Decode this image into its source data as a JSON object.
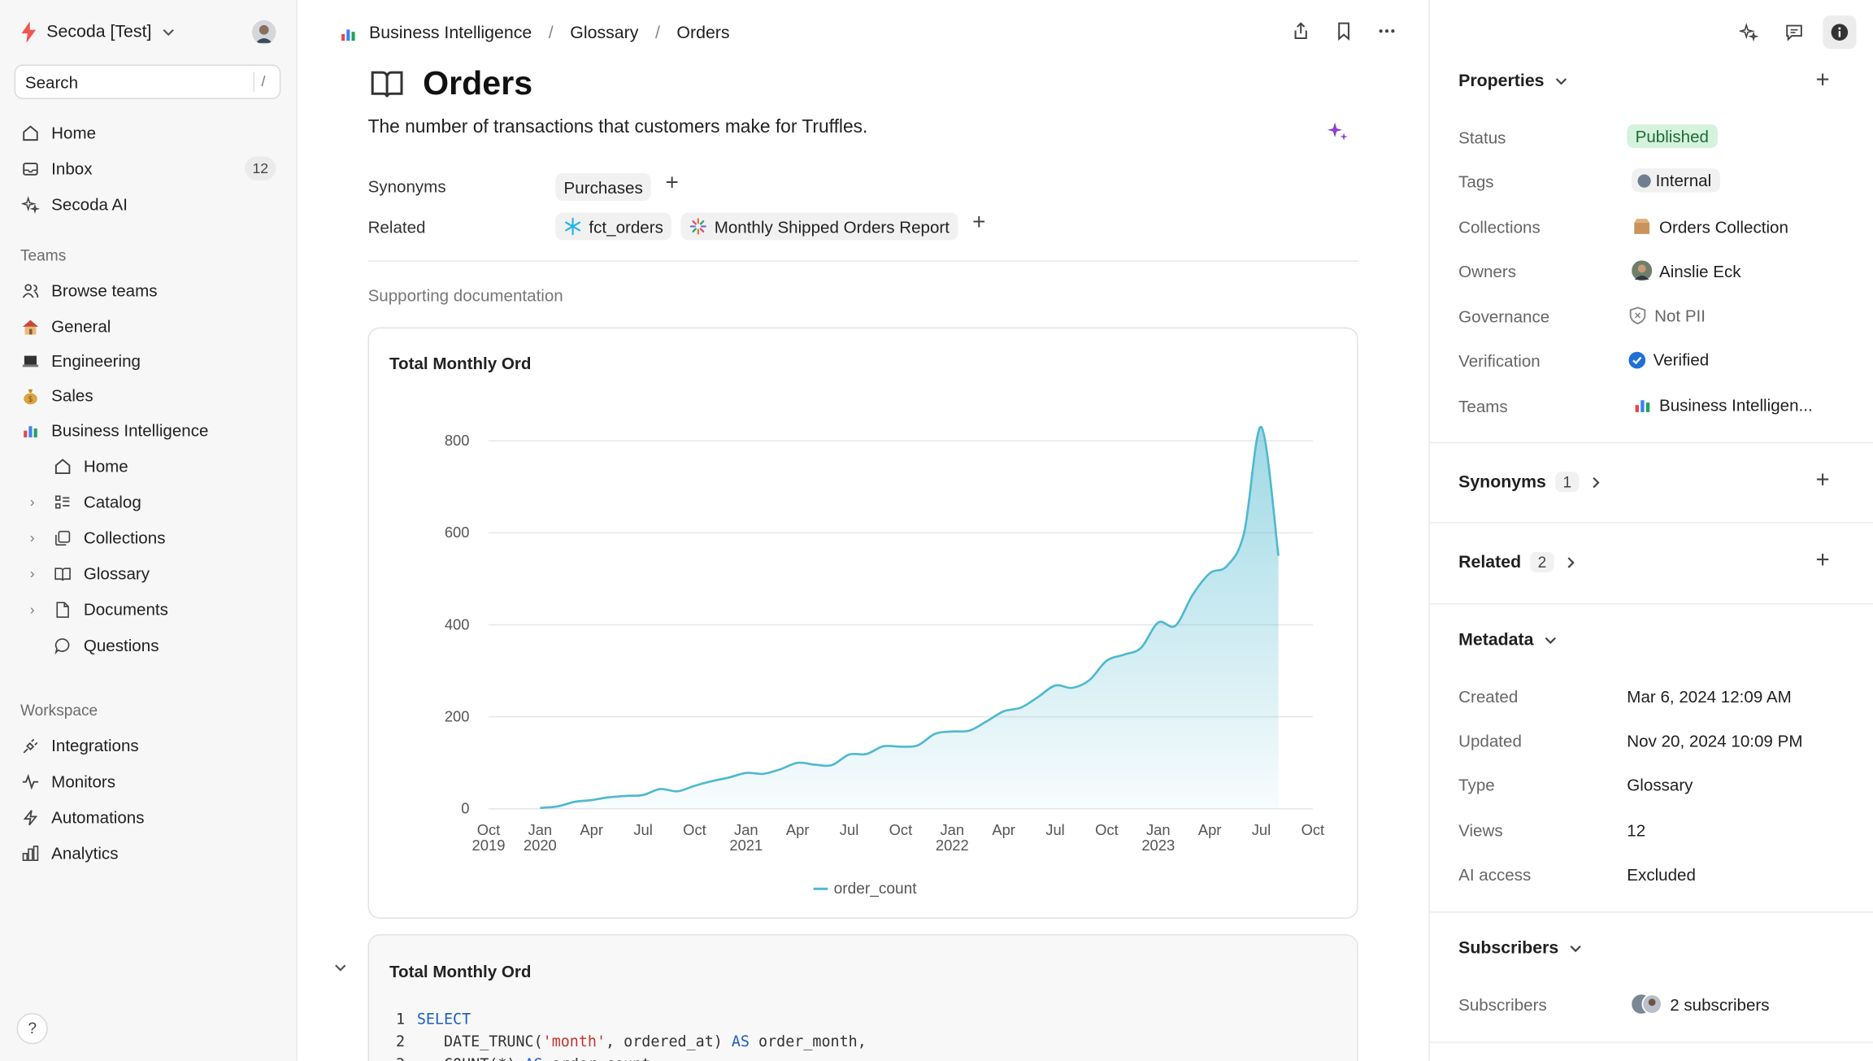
{
  "sidebar": {
    "workspace_name": "Secoda [Test]",
    "search_label": "Search",
    "search_shortcut": "/",
    "main_nav": [
      {
        "label": "Home",
        "icon": "home-icon"
      },
      {
        "label": "Inbox",
        "icon": "inbox-icon",
        "badge": "12"
      },
      {
        "label": "Secoda AI",
        "icon": "sparkle-icon"
      }
    ],
    "teams_label": "Teams",
    "teams": [
      {
        "label": "Browse teams",
        "icon": "users-icon"
      },
      {
        "label": "General",
        "icon": "house-emoji-icon",
        "emoji": "🏠"
      },
      {
        "label": "Engineering",
        "icon": "laptop-emoji-icon",
        "emoji": "💻"
      },
      {
        "label": "Sales",
        "icon": "moneybag-emoji-icon",
        "emoji": "💰"
      },
      {
        "label": "Business Intelligence",
        "icon": "bar-chart-emoji-icon",
        "emoji": "📊"
      }
    ],
    "bi_children": [
      {
        "label": "Home",
        "icon": "home-icon",
        "chevron": false
      },
      {
        "label": "Catalog",
        "icon": "catalog-icon",
        "chevron": true
      },
      {
        "label": "Collections",
        "icon": "collections-icon",
        "chevron": true
      },
      {
        "label": "Glossary",
        "icon": "book-icon",
        "chevron": true
      },
      {
        "label": "Documents",
        "icon": "document-icon",
        "chevron": true
      },
      {
        "label": "Questions",
        "icon": "question-bubble-icon",
        "chevron": false
      }
    ],
    "workspace_label": "Workspace",
    "workspace_items": [
      {
        "label": "Integrations",
        "icon": "plug-icon"
      },
      {
        "label": "Monitors",
        "icon": "pulse-icon"
      },
      {
        "label": "Automations",
        "icon": "bolt-icon"
      },
      {
        "label": "Analytics",
        "icon": "analytics-icon"
      }
    ],
    "help_label": "?"
  },
  "breadcrumb": {
    "items": [
      "Business Intelligence",
      "Glossary",
      "Orders"
    ],
    "separator": "/"
  },
  "main": {
    "title": "Orders",
    "description": "The number of transactions that customers make for Truffles.",
    "synonyms_label": "Synonyms",
    "synonyms": [
      "Purchases"
    ],
    "related_label": "Related",
    "related": [
      "fct_orders",
      "Monthly Shipped Orders Report"
    ],
    "supporting_label": "Supporting documentation",
    "chart_card_title": "Total Monthly Ord",
    "query_card_title": "Total Monthly Ord",
    "code_lines": [
      {
        "n": "1",
        "parts": [
          {
            "t": "SELECT",
            "c": "kw"
          }
        ]
      },
      {
        "n": "2",
        "parts": [
          {
            "t": "   DATE_TRUNC(",
            "c": "plain"
          },
          {
            "t": "'month'",
            "c": "str"
          },
          {
            "t": ", ordered_at) ",
            "c": "plain"
          },
          {
            "t": "AS",
            "c": "kw"
          },
          {
            "t": " order_month,",
            "c": "plain"
          }
        ]
      },
      {
        "n": "3",
        "parts": [
          {
            "t": "   COUNT(*) ",
            "c": "plain"
          },
          {
            "t": "AS",
            "c": "kw"
          },
          {
            "t": " order_count",
            "c": "plain"
          }
        ]
      }
    ]
  },
  "chart_data": {
    "type": "area",
    "title": "Total Monthly Ord",
    "series": [
      {
        "name": "order_count",
        "color": "#4fb9cf"
      }
    ],
    "ylim": [
      0,
      800
    ],
    "yticks": [
      0,
      200,
      400,
      600,
      800
    ],
    "xticks": [
      {
        "label": [
          "Oct",
          "2019"
        ],
        "t": 0
      },
      {
        "label": [
          "Jan",
          "2020"
        ],
        "t": 3
      },
      {
        "label": [
          "Apr"
        ],
        "t": 6
      },
      {
        "label": [
          "Jul"
        ],
        "t": 9
      },
      {
        "label": [
          "Oct"
        ],
        "t": 12
      },
      {
        "label": [
          "Jan",
          "2021"
        ],
        "t": 15
      },
      {
        "label": [
          "Apr"
        ],
        "t": 18
      },
      {
        "label": [
          "Jul"
        ],
        "t": 21
      },
      {
        "label": [
          "Oct"
        ],
        "t": 24
      },
      {
        "label": [
          "Jan",
          "2022"
        ],
        "t": 27
      },
      {
        "label": [
          "Apr"
        ],
        "t": 30
      },
      {
        "label": [
          "Jul"
        ],
        "t": 33
      },
      {
        "label": [
          "Oct"
        ],
        "t": 36
      },
      {
        "label": [
          "Jan",
          "2023"
        ],
        "t": 39
      },
      {
        "label": [
          "Apr"
        ],
        "t": 42
      },
      {
        "label": [
          "Jul"
        ],
        "t": 45
      },
      {
        "label": [
          "Oct"
        ],
        "t": 48
      }
    ],
    "points": [
      [
        "2020-01",
        2
      ],
      [
        "2020-02",
        5
      ],
      [
        "2020-03",
        15
      ],
      [
        "2020-04",
        19
      ],
      [
        "2020-05",
        25
      ],
      [
        "2020-06",
        28
      ],
      [
        "2020-07",
        30
      ],
      [
        "2020-08",
        43
      ],
      [
        "2020-09",
        38
      ],
      [
        "2020-10",
        50
      ],
      [
        "2020-11",
        60
      ],
      [
        "2020-12",
        68
      ],
      [
        "2021-01",
        78
      ],
      [
        "2021-02",
        76
      ],
      [
        "2021-03",
        86
      ],
      [
        "2021-04",
        100
      ],
      [
        "2021-05",
        96
      ],
      [
        "2021-06",
        95
      ],
      [
        "2021-07",
        118
      ],
      [
        "2021-08",
        119
      ],
      [
        "2021-09",
        136
      ],
      [
        "2021-10",
        135
      ],
      [
        "2021-11",
        138
      ],
      [
        "2021-12",
        163
      ],
      [
        "2022-01",
        168
      ],
      [
        "2022-02",
        170
      ],
      [
        "2022-03",
        190
      ],
      [
        "2022-04",
        212
      ],
      [
        "2022-05",
        220
      ],
      [
        "2022-06",
        243
      ],
      [
        "2022-07",
        268
      ],
      [
        "2022-08",
        263
      ],
      [
        "2022-09",
        280
      ],
      [
        "2022-10",
        322
      ],
      [
        "2022-11",
        335
      ],
      [
        "2022-12",
        350
      ],
      [
        "2023-01",
        405
      ],
      [
        "2023-02",
        398
      ],
      [
        "2023-03",
        465
      ],
      [
        "2023-04",
        512
      ],
      [
        "2023-05",
        528
      ],
      [
        "2023-06",
        600
      ],
      [
        "2023-07",
        830
      ],
      [
        "2023-08",
        550
      ]
    ],
    "grid": true,
    "legend": "bottom-center"
  },
  "properties": {
    "title": "Properties",
    "rows": [
      {
        "label": "Status",
        "value": "Published"
      },
      {
        "label": "Tags",
        "value": "Internal"
      },
      {
        "label": "Collections",
        "value": "Orders Collection"
      },
      {
        "label": "Owners",
        "value": "Ainslie Eck"
      },
      {
        "label": "Governance",
        "value": "Not PII"
      },
      {
        "label": "Verification",
        "value": "Verified"
      },
      {
        "label": "Teams",
        "value": "Business Intelligen..."
      }
    ]
  },
  "synonyms_panel": {
    "title": "Synonyms",
    "count": "1"
  },
  "related_panel": {
    "title": "Related",
    "count": "2"
  },
  "metadata": {
    "title": "Metadata",
    "rows": [
      {
        "label": "Created",
        "value": "Mar 6, 2024 12:09 AM"
      },
      {
        "label": "Updated",
        "value": "Nov 20, 2024 10:09 PM"
      },
      {
        "label": "Type",
        "value": "Glossary"
      },
      {
        "label": "Views",
        "value": "12"
      },
      {
        "label": "AI access",
        "value": "Excluded"
      }
    ]
  },
  "subscribers": {
    "title": "Subscribers",
    "label": "Subscribers",
    "value": "2 subscribers"
  },
  "colors": {
    "accent": "#4fb9cf",
    "published_bg": "#d5f2dd",
    "published_fg": "#1e6b35",
    "ai_purple": "#8a3fd1"
  }
}
